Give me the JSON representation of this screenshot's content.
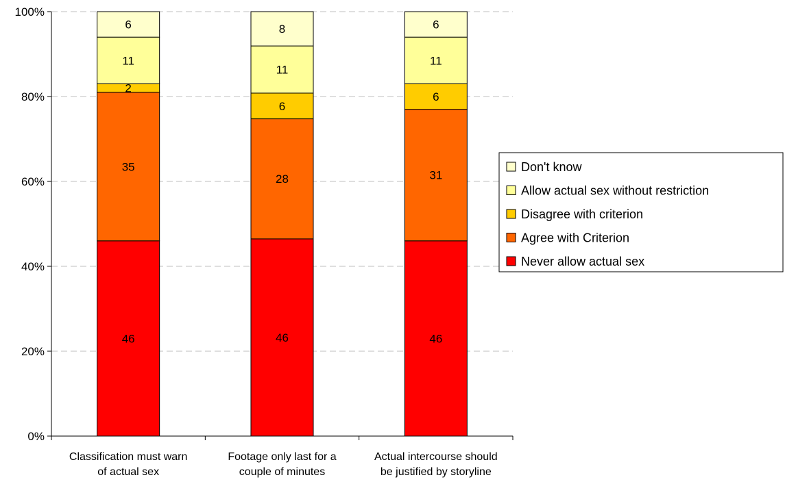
{
  "chart_data": {
    "type": "bar",
    "stacked": true,
    "percent_stacked": true,
    "categories": [
      [
        "Classification must warn",
        "of actual sex"
      ],
      [
        "Footage only last for a",
        "couple of minutes"
      ],
      [
        "Actual intercourse should",
        "be justified by storyline"
      ]
    ],
    "series": [
      {
        "name": "Never allow actual sex",
        "color": "#FF0000",
        "values": [
          46,
          46,
          46
        ]
      },
      {
        "name": "Agree with Criterion",
        "color": "#FF6600",
        "values": [
          35,
          28,
          31
        ]
      },
      {
        "name": "Disagree with criterion",
        "color": "#FFCC00",
        "values": [
          2,
          6,
          6
        ]
      },
      {
        "name": "Allow actual sex without restriction",
        "color": "#FFFF99",
        "values": [
          11,
          11,
          11
        ]
      },
      {
        "name": "Don't know",
        "color": "#FFFFCC",
        "values": [
          6,
          8,
          6
        ]
      }
    ],
    "yticks": [
      "0%",
      "20%",
      "40%",
      "60%",
      "80%",
      "100%"
    ],
    "ylim": [
      0,
      100
    ],
    "grid": "horizontal-dashed",
    "legend": "right",
    "legend_order": [
      "Don't know",
      "Allow actual sex without restriction",
      "Disagree with criterion",
      "Agree with Criterion",
      "Never allow actual sex"
    ]
  }
}
